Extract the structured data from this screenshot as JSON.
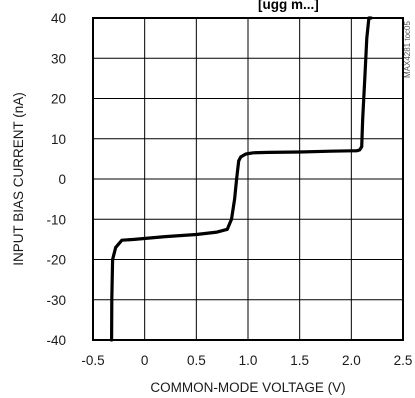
{
  "header": {
    "title_fragment": "[ugg m...]"
  },
  "side_id": "MAX4281 toc05",
  "chart_data": {
    "type": "line",
    "xlabel": "COMMON-MODE VOLTAGE (V)",
    "ylabel": "INPUT BIAS CURRENT (nA)",
    "xlim": [
      -0.5,
      2.5
    ],
    "ylim": [
      -40,
      40
    ],
    "grid": true,
    "xticks": [
      -0.5,
      0,
      0.5,
      1.0,
      1.5,
      2.0,
      2.5
    ],
    "xtick_labels": [
      "-0.5",
      "0",
      "0.5",
      "1.0",
      "1.5",
      "2.0",
      "2.5"
    ],
    "yticks": [
      40,
      30,
      20,
      10,
      0,
      -10,
      -20,
      -30,
      -40
    ],
    "ytick_labels": [
      "40",
      "30",
      "20",
      "10",
      "0",
      "-10",
      "-20",
      "-30",
      "-40"
    ],
    "series": [
      {
        "x": [
          -0.32,
          -0.318,
          -0.31,
          -0.28,
          -0.22,
          -0.1,
          0.2,
          0.5,
          0.7,
          0.8,
          0.84,
          0.87,
          0.89,
          0.91,
          0.93,
          0.95,
          0.98,
          1.05,
          1.2,
          1.5,
          1.8,
          2.0,
          2.05,
          2.08,
          2.1,
          2.11,
          2.13,
          2.15,
          2.17,
          2.19
        ],
        "y": [
          -40,
          -30,
          -20,
          -17,
          -15.2,
          -15,
          -14.3,
          -13.8,
          -13.2,
          -12.5,
          -10,
          -5,
          0,
          4.5,
          5.5,
          5.8,
          6.2,
          6.5,
          6.6,
          6.7,
          6.9,
          7.0,
          7.0,
          7.2,
          8,
          15,
          25,
          35,
          40,
          40
        ]
      }
    ]
  }
}
